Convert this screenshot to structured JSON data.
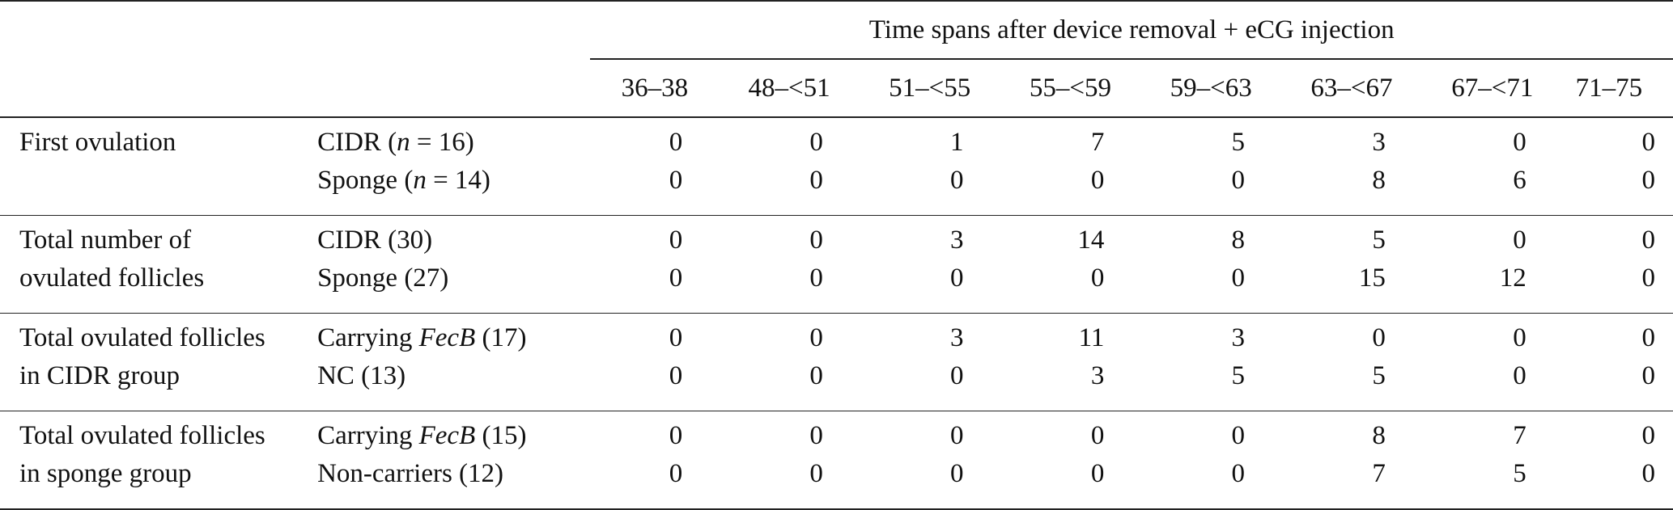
{
  "header": {
    "span_title": "Time spans after device removal + eCG injection",
    "time_spans": [
      "36–38",
      "48–<51",
      "51–<55",
      "55–<59",
      "59–<63",
      "63–<67",
      "67–<71",
      "71–75"
    ]
  },
  "sections": [
    {
      "label_lines": [
        "First ovulation",
        ""
      ],
      "rows": [
        {
          "group_pre": "CIDR (",
          "group_italic": "n",
          "group_post": " = 16)",
          "values": [
            "0",
            "0",
            "1",
            "7",
            "5",
            "3",
            "0",
            "0"
          ]
        },
        {
          "group_pre": "Sponge (",
          "group_italic": "n",
          "group_post": " = 14)",
          "values": [
            "0",
            "0",
            "0",
            "0",
            "0",
            "8",
            "6",
            "0"
          ]
        }
      ]
    },
    {
      "label_lines": [
        "Total number of",
        "ovulated follicles"
      ],
      "rows": [
        {
          "group_pre": "CIDR (30)",
          "group_italic": "",
          "group_post": "",
          "values": [
            "0",
            "0",
            "3",
            "14",
            "8",
            "5",
            "0",
            "0"
          ]
        },
        {
          "group_pre": "Sponge (27)",
          "group_italic": "",
          "group_post": "",
          "values": [
            "0",
            "0",
            "0",
            "0",
            "0",
            "15",
            "12",
            "0"
          ]
        }
      ]
    },
    {
      "label_lines": [
        "Total ovulated follicles",
        "in CIDR group"
      ],
      "rows": [
        {
          "group_pre": "Carrying ",
          "group_italic": "FecB",
          "group_post": " (17)",
          "values": [
            "0",
            "0",
            "3",
            "11",
            "3",
            "0",
            "0",
            "0"
          ]
        },
        {
          "group_pre": "NC (13)",
          "group_italic": "",
          "group_post": "",
          "values": [
            "0",
            "0",
            "0",
            "3",
            "5",
            "5",
            "0",
            "0"
          ]
        }
      ]
    },
    {
      "label_lines": [
        "Total ovulated follicles",
        "in sponge group"
      ],
      "rows": [
        {
          "group_pre": "Carrying ",
          "group_italic": "FecB",
          "group_post": " (15)",
          "values": [
            "0",
            "0",
            "0",
            "0",
            "0",
            "8",
            "7",
            "0"
          ]
        },
        {
          "group_pre": "Non-carriers (12)",
          "group_italic": "",
          "group_post": "",
          "values": [
            "0",
            "0",
            "0",
            "0",
            "0",
            "7",
            "5",
            "0"
          ]
        }
      ]
    }
  ]
}
